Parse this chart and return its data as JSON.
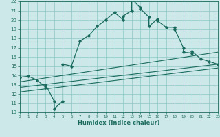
{
  "title": "",
  "xlabel": "Humidex (Indice chaleur)",
  "bg_color": "#cce8e8",
  "grid_color": "#99cccc",
  "line_color": "#1a6b5e",
  "xlim": [
    0,
    23
  ],
  "ylim": [
    10,
    22
  ],
  "xticks": [
    0,
    1,
    2,
    3,
    4,
    5,
    6,
    7,
    8,
    9,
    10,
    11,
    12,
    13,
    14,
    15,
    16,
    17,
    18,
    19,
    20,
    21,
    22,
    23
  ],
  "yticks": [
    10,
    11,
    12,
    13,
    14,
    15,
    16,
    17,
    18,
    19,
    20,
    21,
    22
  ],
  "curve1_x": [
    0,
    1,
    2,
    3,
    3,
    4,
    4,
    5,
    5,
    6,
    7,
    8,
    9,
    10,
    11,
    12,
    12,
    13,
    13,
    14,
    14,
    15,
    15,
    16,
    16,
    17,
    18,
    18,
    19,
    19,
    20,
    20,
    21,
    22,
    23
  ],
  "curve1_y": [
    13.8,
    13.9,
    13.5,
    12.7,
    13.0,
    11.2,
    10.4,
    11.2,
    15.2,
    15.0,
    17.7,
    18.3,
    19.3,
    20.0,
    20.8,
    20.0,
    20.4,
    21.0,
    22.3,
    21.3,
    21.2,
    20.3,
    19.3,
    20.1,
    19.9,
    19.2,
    19.2,
    19.0,
    17.0,
    16.5,
    16.4,
    16.6,
    15.8,
    15.5,
    15.2
  ],
  "line1_x": [
    0,
    23
  ],
  "line1_y": [
    13.3,
    16.5
  ],
  "line2_x": [
    0,
    23
  ],
  "line2_y": [
    12.7,
    15.2
  ],
  "line3_x": [
    0,
    23
  ],
  "line3_y": [
    12.2,
    14.8
  ]
}
